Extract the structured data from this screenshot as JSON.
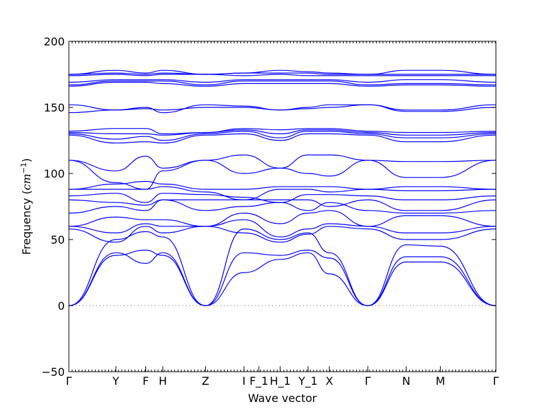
{
  "chart_data": {
    "type": "line",
    "title": "",
    "xlabel": "Wave vector",
    "ylabel": "Frequency ($cm^{-1}$)",
    "ylabel_parts": {
      "text": "Frequency (",
      "unit_base": "cm",
      "unit_exp": "−1",
      "close": ")"
    },
    "ylim": [
      -50,
      200
    ],
    "yticks": [
      -50,
      0,
      50,
      100,
      150,
      200
    ],
    "grid": false,
    "legend": "none",
    "line_color": "#0000ff",
    "zero_line": true,
    "xlim": [
      0,
      16
    ],
    "xticks": [
      {
        "label": "Γ",
        "x": 0
      },
      {
        "label": "Y",
        "x": 1.1
      },
      {
        "label": "F",
        "x": 1.8
      },
      {
        "label": "H",
        "x": 2.2
      },
      {
        "label": "Z",
        "x": 3.2
      },
      {
        "label": "I",
        "x": 4.1
      },
      {
        "label": "F_1",
        "x": 4.45
      },
      {
        "label": "H_1",
        "x": 4.95
      },
      {
        "label": "Y_1",
        "x": 5.6
      },
      {
        "label": "X",
        "x": 6.1
      },
      {
        "label": "Γ",
        "x": 7.0
      },
      {
        "label": "N",
        "x": 7.9
      },
      {
        "label": "M",
        "x": 8.7
      },
      {
        "label": "Γ",
        "x": 10.0
      }
    ],
    "series": [
      {
        "values": [
          0,
          40,
          32,
          40,
          0,
          25,
          35,
          40,
          24,
          0,
          33,
          33,
          0
        ]
      },
      {
        "values": [
          0,
          38,
          42,
          38,
          0,
          40,
          38,
          42,
          36,
          0,
          37,
          37,
          0
        ]
      },
      {
        "values": [
          0,
          50,
          56,
          52,
          0,
          58,
          50,
          55,
          40,
          0,
          46,
          45,
          0
        ]
      },
      {
        "values": [
          58,
          48,
          60,
          55,
          60,
          55,
          48,
          54,
          60,
          58,
          50,
          50,
          58
        ]
      },
      {
        "values": [
          60,
          55,
          62,
          60,
          60,
          65,
          52,
          58,
          62,
          60,
          55,
          55,
          60
        ]
      },
      {
        "values": [
          60,
          67,
          65,
          65,
          60,
          70,
          62,
          70,
          72,
          60,
          68,
          68,
          60
        ]
      },
      {
        "values": [
          70,
          75,
          72,
          80,
          72,
          75,
          78,
          72,
          78,
          72,
          70,
          70,
          72
        ]
      },
      {
        "values": [
          80,
          78,
          76,
          80,
          80,
          80,
          80,
          80,
          75,
          80,
          72,
          72,
          80
        ]
      },
      {
        "values": [
          83,
          85,
          78,
          85,
          84,
          82,
          78,
          84,
          84,
          83,
          80,
          80,
          83
        ]
      },
      {
        "values": [
          88,
          88,
          88,
          90,
          86,
          80,
          88,
          88,
          86,
          88,
          87,
          87,
          88
        ]
      },
      {
        "values": [
          88,
          92,
          94,
          92,
          88,
          88,
          90,
          90,
          90,
          88,
          90,
          90,
          88
        ]
      },
      {
        "values": [
          110,
          93,
          88,
          102,
          110,
          100,
          104,
          100,
          98,
          110,
          97,
          97,
          110
        ]
      },
      {
        "values": [
          110,
          102,
          113,
          104,
          110,
          114,
          104,
          114,
          114,
          110,
          109,
          109,
          110
        ]
      },
      {
        "values": [
          129,
          123,
          124,
          123,
          129,
          130,
          125,
          130,
          130,
          129,
          124,
          124,
          129
        ]
      },
      {
        "values": [
          130,
          126,
          128,
          125,
          130,
          132,
          127,
          132,
          132,
          130,
          127,
          127,
          130
        ]
      },
      {
        "values": [
          131,
          130,
          130,
          129,
          131,
          133,
          130,
          133,
          133,
          131,
          129,
          129,
          131
        ]
      },
      {
        "values": [
          132,
          134,
          134,
          130,
          131,
          134,
          133,
          134,
          134,
          132,
          131,
          131,
          132
        ]
      },
      {
        "values": [
          146,
          148,
          149,
          148,
          150,
          150,
          148,
          149,
          150,
          152,
          147,
          147,
          150
        ]
      },
      {
        "values": [
          152,
          148,
          150,
          146,
          152,
          151,
          148,
          150,
          152,
          152,
          148,
          148,
          152
        ]
      },
      {
        "values": [
          166,
          169,
          169,
          168,
          166,
          168,
          168,
          168,
          168,
          166,
          167,
          167,
          166
        ]
      },
      {
        "values": [
          167,
          170,
          170,
          170,
          167,
          170,
          170,
          170,
          170,
          167,
          168,
          168,
          167
        ]
      },
      {
        "values": [
          169,
          171,
          171,
          171,
          169,
          171,
          171,
          171,
          171,
          169,
          171,
          171,
          169
        ]
      },
      {
        "values": [
          174,
          175,
          174,
          175,
          175,
          174,
          175,
          174,
          174,
          174,
          174,
          174,
          174
        ]
      },
      {
        "values": [
          175,
          176,
          175,
          176,
          175,
          176,
          176,
          176,
          175,
          175,
          175,
          175,
          175
        ]
      },
      {
        "values": [
          175,
          178,
          176,
          178,
          175,
          176,
          178,
          177,
          176,
          175,
          178,
          178,
          175
        ]
      }
    ],
    "series_x": [
      0,
      1.1,
      1.8,
      2.2,
      3.2,
      4.1,
      4.95,
      5.6,
      6.1,
      7.0,
      7.9,
      8.7,
      10.0
    ]
  }
}
